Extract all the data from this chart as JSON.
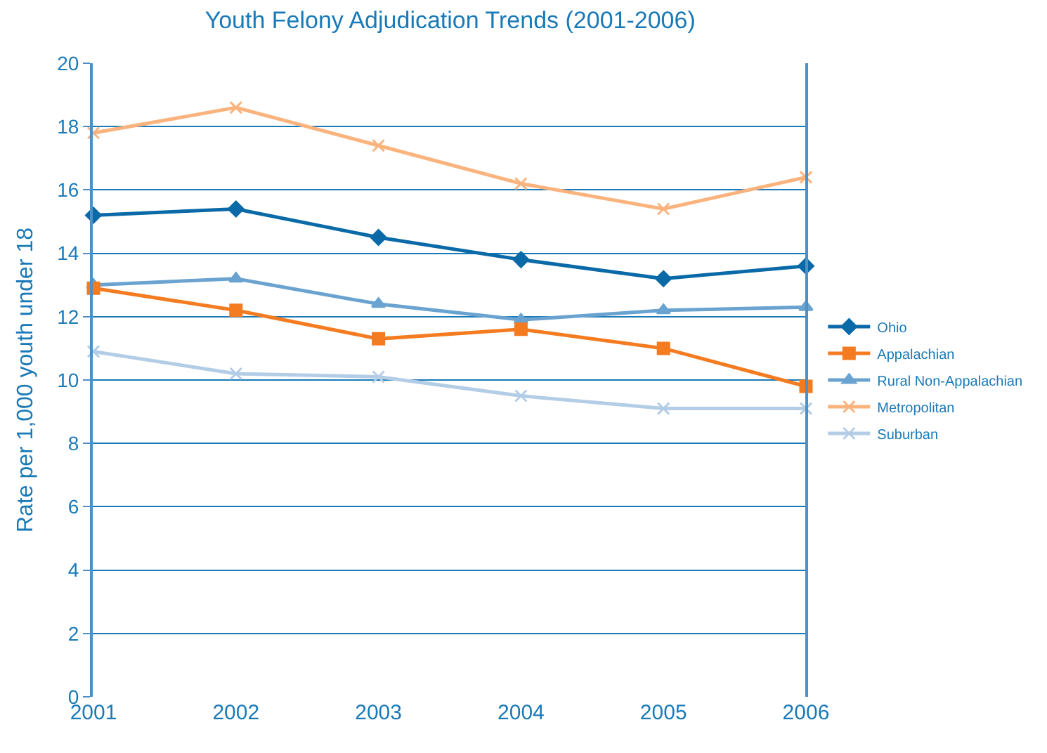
{
  "chart_data": {
    "type": "line",
    "title": "Youth Felony Adjudication Trends (2001-2006)",
    "ylabel": "Rate per 1,000 youth under 18",
    "categories": [
      "2001",
      "2002",
      "2003",
      "2004",
      "2005",
      "2006"
    ],
    "ylim": [
      0,
      20
    ],
    "yticks": [
      0,
      2,
      4,
      6,
      8,
      10,
      12,
      14,
      16,
      18,
      20
    ],
    "grid": "y",
    "legend": "right",
    "line_style": "solid",
    "series": [
      {
        "name": "Ohio",
        "color": "#0a6aa8",
        "marker": "diamond",
        "values": [
          15.2,
          15.4,
          14.5,
          13.8,
          13.2,
          13.6
        ]
      },
      {
        "name": "Appalachian",
        "color": "#f47b20",
        "marker": "square",
        "values": [
          12.9,
          12.2,
          11.3,
          11.6,
          11.0,
          9.8
        ]
      },
      {
        "name": "Rural Non-Appalachian",
        "color": "#6aa3d0",
        "marker": "triangle",
        "values": [
          13.0,
          13.2,
          12.4,
          11.9,
          12.2,
          12.3
        ]
      },
      {
        "name": "Metropolitan",
        "color": "#fbb37e",
        "marker": "cross",
        "values": [
          17.8,
          18.6,
          17.4,
          16.2,
          15.4,
          16.4
        ]
      },
      {
        "name": "Suburban",
        "color": "#b3cde6",
        "marker": "cross",
        "values": [
          10.9,
          10.2,
          10.1,
          9.5,
          9.1,
          9.1
        ]
      }
    ]
  }
}
